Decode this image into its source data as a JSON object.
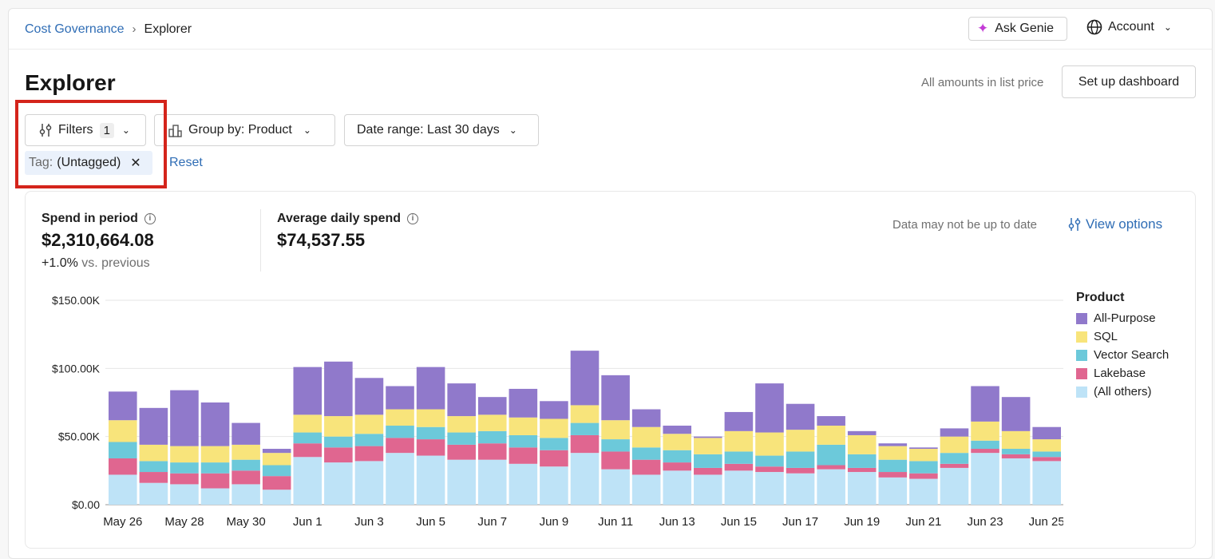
{
  "breadcrumb": {
    "parent": "Cost Governance",
    "current": "Explorer"
  },
  "header": {
    "ask_genie": "Ask Genie",
    "account": "Account"
  },
  "page": {
    "title": "Explorer",
    "list_price_note": "All amounts in list price",
    "setup_dashboard": "Set up dashboard"
  },
  "toolbar": {
    "filters_label": "Filters",
    "filters_count": "1",
    "group_by": "Group by: Product",
    "date_range": "Date range: Last 30 days",
    "tag_key": "Tag:",
    "tag_value": "(Untagged)",
    "reset": "Reset"
  },
  "kpis": {
    "spend_label": "Spend in period",
    "spend_value": "$2,310,664.08",
    "spend_delta": "+1.0%",
    "spend_delta_suffix": "vs. previous",
    "avg_label": "Average daily spend",
    "avg_value": "$74,537.55",
    "stale_note": "Data may not be up to date",
    "view_options": "View options"
  },
  "colors": {
    "All-Purpose": "#9079cb",
    "SQL": "#f8e47b",
    "Vector Search": "#6cc9da",
    "Lakebase": "#e06690",
    "(All others)": "#bee3f7",
    "highlight": "#d4241b",
    "link": "#2f6db5"
  },
  "chart_data": {
    "type": "bar",
    "stacked": true,
    "ylim": [
      0,
      150000
    ],
    "yticks": [
      "$0.00",
      "$50.00K",
      "$100.00K",
      "$150.00K"
    ],
    "ytick_values": [
      0,
      50000,
      100000,
      150000
    ],
    "xtick_labels": [
      "May 26",
      "May 28",
      "May 30",
      "Jun 1",
      "Jun 3",
      "Jun 5",
      "Jun 7",
      "Jun 9",
      "Jun 11",
      "Jun 13",
      "Jun 15",
      "Jun 17",
      "Jun 19",
      "Jun 21",
      "Jun 23",
      "Jun 25"
    ],
    "legend_title": "Product",
    "legend_position": "right",
    "categories": [
      "May 26",
      "May 27",
      "May 28",
      "May 29",
      "May 30",
      "May 31",
      "Jun 1",
      "Jun 2",
      "Jun 3",
      "Jun 4",
      "Jun 5",
      "Jun 6",
      "Jun 7",
      "Jun 8",
      "Jun 9",
      "Jun 10",
      "Jun 11",
      "Jun 12",
      "Jun 13",
      "Jun 14",
      "Jun 15",
      "Jun 16",
      "Jun 17",
      "Jun 18",
      "Jun 19",
      "Jun 20",
      "Jun 21",
      "Jun 22",
      "Jun 23",
      "Jun 24",
      "Jun 25"
    ],
    "series": [
      {
        "name": "(All others)",
        "values": [
          22000,
          16000,
          15000,
          12000,
          15000,
          11000,
          35000,
          31000,
          32000,
          38000,
          36000,
          33000,
          33000,
          30000,
          28000,
          38000,
          26000,
          22000,
          25000,
          22000,
          25000,
          24000,
          23000,
          26000,
          24000,
          20000,
          19000,
          27000,
          38000,
          34000,
          32000
        ]
      },
      {
        "name": "Lakebase",
        "values": [
          12000,
          8000,
          8000,
          11000,
          10000,
          10000,
          10000,
          11000,
          11000,
          11000,
          12000,
          11000,
          12000,
          12000,
          12000,
          13000,
          13000,
          11000,
          6000,
          5000,
          5000,
          4000,
          4000,
          3000,
          3000,
          4000,
          4000,
          3000,
          3000,
          3000,
          3000
        ]
      },
      {
        "name": "Vector Search",
        "values": [
          12000,
          8000,
          8000,
          8000,
          8000,
          8000,
          8000,
          8000,
          9000,
          9000,
          9000,
          9000,
          9000,
          9000,
          9000,
          9000,
          9000,
          9000,
          9000,
          10000,
          9000,
          8000,
          12000,
          15000,
          10000,
          9000,
          9000,
          8000,
          6000,
          4000,
          4000
        ]
      },
      {
        "name": "SQL",
        "values": [
          16000,
          12000,
          12000,
          12000,
          11000,
          9000,
          13000,
          15000,
          14000,
          12000,
          13000,
          12000,
          12000,
          13000,
          14000,
          13000,
          14000,
          15000,
          12000,
          12000,
          15000,
          17000,
          16000,
          14000,
          14000,
          10000,
          9000,
          12000,
          14000,
          13000,
          9000
        ]
      },
      {
        "name": "All-Purpose",
        "values": [
          21000,
          27000,
          41000,
          32000,
          16000,
          3000,
          35000,
          40000,
          27000,
          17000,
          31000,
          24000,
          13000,
          21000,
          13000,
          40000,
          33000,
          13000,
          6000,
          1000,
          14000,
          36000,
          19000,
          7000,
          3000,
          2000,
          1000,
          6000,
          26000,
          25000,
          9000
        ]
      }
    ]
  }
}
